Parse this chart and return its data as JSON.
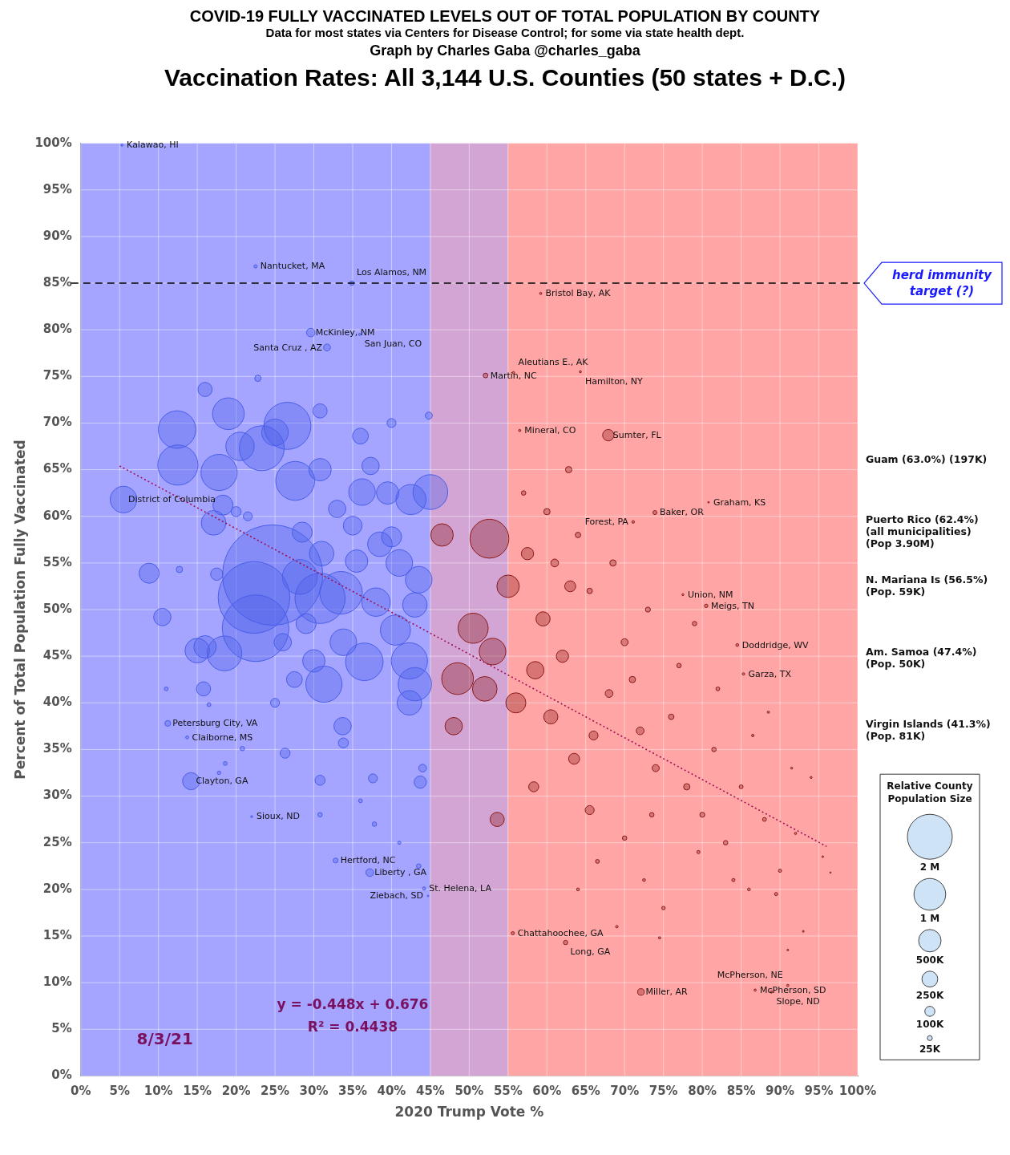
{
  "chart_data": {
    "type": "bubble",
    "title": "COVID-19 FULLY VACCINATED LEVELS OUT OF TOTAL POPULATION BY COUNTY",
    "subtitle": "Data for most states via Centers for Disease Control; for some via state health dept.",
    "xlabel": "2020 Trump Vote %",
    "ylabel": "Percent of Total Population Fully Vaccinated",
    "legend_title": "Relative County Population Size",
    "xlim": [
      0,
      100
    ],
    "ylim": [
      0,
      100
    ],
    "xticks": [
      {
        "value": 0,
        "label": "0%"
      },
      {
        "value": 5,
        "label": "5%"
      },
      {
        "value": 10,
        "label": "10%"
      },
      {
        "value": 15,
        "label": "15%"
      },
      {
        "value": 20,
        "label": "20%"
      },
      {
        "value": 25,
        "label": "25%"
      },
      {
        "value": 30,
        "label": "30%"
      },
      {
        "value": 35,
        "label": "35%"
      },
      {
        "value": 40,
        "label": "40%"
      },
      {
        "value": 45,
        "label": "45%"
      },
      {
        "value": 50,
        "label": "50%"
      },
      {
        "value": 55,
        "label": "55%"
      },
      {
        "value": 60,
        "label": "60%"
      },
      {
        "value": 65,
        "label": "65%"
      },
      {
        "value": 70,
        "label": "70%"
      },
      {
        "value": 75,
        "label": "75%"
      },
      {
        "value": 80,
        "label": "80%"
      },
      {
        "value": 85,
        "label": "85%"
      },
      {
        "value": 90,
        "label": "90%"
      },
      {
        "value": 95,
        "label": "95%"
      },
      {
        "value": 100,
        "label": "100%"
      }
    ],
    "yticks": [
      {
        "value": 0,
        "label": "0%"
      },
      {
        "value": 5,
        "label": "5%"
      },
      {
        "value": 10,
        "label": "10%"
      },
      {
        "value": 15,
        "label": "15%"
      },
      {
        "value": 20,
        "label": "20%"
      },
      {
        "value": 25,
        "label": "25%"
      },
      {
        "value": 30,
        "label": "30%"
      },
      {
        "value": 35,
        "label": "35%"
      },
      {
        "value": 40,
        "label": "40%"
      },
      {
        "value": 45,
        "label": "45%"
      },
      {
        "value": 50,
        "label": "50%"
      },
      {
        "value": 55,
        "label": "55%"
      },
      {
        "value": 60,
        "label": "60%"
      },
      {
        "value": 65,
        "label": "65%"
      },
      {
        "value": 70,
        "label": "70%"
      },
      {
        "value": 75,
        "label": "75%"
      },
      {
        "value": 80,
        "label": "80%"
      },
      {
        "value": 85,
        "label": "85%"
      },
      {
        "value": 90,
        "label": "90%"
      },
      {
        "value": 95,
        "label": "95%"
      },
      {
        "value": 100,
        "label": "100%"
      }
    ],
    "grid": true,
    "size_legend": [
      {
        "value": 2000000,
        "label": "2 M"
      },
      {
        "value": 1000000,
        "label": "1 M"
      },
      {
        "value": 500000,
        "label": "500K"
      },
      {
        "value": 250000,
        "label": "250K"
      },
      {
        "value": 100000,
        "label": "100K"
      },
      {
        "value": 25000,
        "label": "25K"
      }
    ],
    "bands": [
      {
        "axis": "x",
        "from": 0,
        "to": 45,
        "color": "#a5a5ff"
      },
      {
        "axis": "x",
        "from": 45,
        "to": 55,
        "color": "#d3a5d5"
      },
      {
        "axis": "x",
        "from": 55,
        "to": 100,
        "color": "#ffa5a5"
      }
    ],
    "ref_lines": [
      {
        "axis": "y",
        "value": 85,
        "label": "herd immunity target (?)",
        "color": "#000000",
        "line_style": "dashed"
      }
    ],
    "series": [
      {
        "color": "#4a5ee8",
        "x": [
          24.7,
          22.3,
          22.5,
          26.6,
          23.3,
          12.5,
          12.4,
          19.0,
          27.6,
          17.8,
          33.5,
          30.8,
          28.2,
          15.0,
          18.5,
          16.0,
          10.5,
          8.8,
          5.5,
          15.8,
          17.5,
          17.1,
          18.3,
          16.0,
          30.8,
          25.0,
          20.5,
          30.8,
          37.3,
          36.2,
          39.5,
          42.5,
          45.0,
          38.5,
          41.0,
          35.5,
          31.3,
          36.5,
          42.3,
          43.0,
          42.3,
          30.0,
          33.8,
          26.0,
          27.5,
          25.0,
          26.3,
          33.7,
          33.8,
          37.6,
          30.8,
          43.7,
          44.0,
          40.5,
          38.0,
          43.0,
          43.5,
          40.0,
          35.0,
          33.0,
          31.0,
          28.5,
          29.0,
          36.0,
          40.0,
          44.8,
          22.8,
          21.5,
          20.0,
          12.7,
          11.0,
          16.5,
          17.8,
          18.6,
          20.8,
          30.8,
          37.8,
          36.0,
          41.0,
          43.5,
          5.3,
          22.5,
          34.9,
          29.6,
          35.9,
          31.7,
          11.2,
          13.7,
          14.2,
          22.0,
          32.8,
          37.2,
          44.2,
          44.7
        ],
        "values": [
          53.7,
          51.3,
          48.0,
          69.7,
          67.3,
          65.5,
          69.3,
          71.0,
          63.8,
          64.7,
          51.8,
          51.2,
          53.5,
          45.6,
          45.3,
          46.0,
          49.2,
          53.9,
          61.8,
          41.5,
          53.8,
          59.3,
          61.2,
          73.6,
          71.3,
          69.0,
          67.5,
          65.0,
          65.4,
          62.6,
          62.5,
          61.8,
          62.6,
          57.0,
          55.0,
          55.2,
          42.0,
          44.4,
          44.5,
          42.0,
          40.0,
          44.5,
          46.5,
          46.5,
          42.5,
          40.0,
          34.6,
          37.5,
          35.7,
          31.9,
          31.7,
          31.5,
          33.0,
          47.8,
          50.8,
          50.5,
          53.2,
          57.8,
          59.0,
          60.8,
          56.0,
          58.3,
          48.5,
          68.6,
          70.0,
          70.8,
          74.8,
          60.0,
          60.5,
          54.3,
          41.5,
          39.8,
          32.5,
          33.5,
          35.1,
          28.0,
          27.0,
          29.5,
          25.0,
          22.5,
          99.8,
          86.8,
          85.0,
          79.7,
          79.5,
          78.1,
          37.8,
          36.3,
          31.6,
          27.8,
          23.1,
          21.8,
          20.1,
          19.3
        ],
        "sizes": [
          10000000,
          5100000,
          4400000,
          2200000,
          2000000,
          1600000,
          1400000,
          1000000,
          1500000,
          1300000,
          1800000,
          2500000,
          1200000,
          600000,
          1200000,
          500000,
          300000,
          400000,
          700000,
          200000,
          150000,
          600000,
          400000,
          200000,
          200000,
          700000,
          800000,
          500000,
          300000,
          700000,
          500000,
          900000,
          1200000,
          600000,
          700000,
          500000,
          1300000,
          1400000,
          1300000,
          1100000,
          600000,
          500000,
          700000,
          300000,
          250000,
          80000,
          100000,
          300000,
          100000,
          80000,
          100000,
          150000,
          60000,
          900000,
          800000,
          600000,
          700000,
          400000,
          350000,
          300000,
          600000,
          400000,
          400000,
          250000,
          80000,
          50000,
          40000,
          80000,
          100000,
          40000,
          15000,
          15000,
          12000,
          15000,
          20000,
          20000,
          20000,
          15000,
          10000,
          20000,
          5000,
          11000,
          19000,
          72000,
          5000,
          48000,
          33000,
          9000,
          290000,
          4000,
          24000,
          60000,
          10000,
          2800
        ]
      },
      {
        "color": "#8b1a1a",
        "x": [
          46.5,
          52.6,
          50.5,
          53.0,
          55.0,
          52.0,
          48.5,
          48.0,
          53.6,
          56.0,
          58.5,
          60.5,
          57.5,
          59.5,
          62.0,
          63.0,
          62.8,
          58.3,
          63.5,
          65.5,
          66.0,
          68.0,
          70.0,
          72.0,
          74.0,
          76.0,
          78.0,
          80.0,
          81.5,
          83.0,
          85.0,
          88.0,
          90.0,
          75.0,
          84.0,
          86.0,
          89.5,
          92.0,
          94.0,
          95.5,
          93.0,
          91.0,
          66.5,
          70.0,
          72.5,
          64.0,
          69.0,
          74.5,
          79.0,
          82.0,
          77.0,
          73.0,
          68.5,
          64.0,
          60.0,
          57.0,
          61.0,
          65.5,
          71.0,
          73.5,
          79.5,
          86.5,
          88.5,
          91.5,
          96.5,
          59.2,
          52.1,
          55.7,
          64.3,
          56.5,
          67.9,
          80.8,
          73.9,
          71.1,
          77.5,
          80.5,
          84.5,
          85.3,
          55.6,
          62.4,
          86.8,
          72.1,
          88.9,
          91.0
        ],
        "values": [
          58.0,
          57.6,
          48.0,
          45.5,
          52.5,
          41.5,
          42.6,
          37.5,
          27.5,
          40.0,
          43.5,
          38.5,
          56.0,
          49.0,
          45.0,
          52.5,
          65.0,
          31.0,
          34.0,
          28.5,
          36.5,
          41.0,
          46.5,
          37.0,
          33.0,
          38.5,
          31.0,
          28.0,
          35.0,
          25.0,
          31.0,
          27.5,
          22.0,
          18.0,
          21.0,
          20.0,
          19.5,
          26.0,
          32.0,
          23.5,
          15.5,
          13.5,
          23.0,
          25.5,
          21.0,
          20.0,
          16.0,
          14.8,
          48.5,
          41.5,
          44.0,
          50.0,
          55.0,
          58.0,
          60.5,
          62.5,
          55.0,
          52.0,
          42.5,
          28.0,
          24.0,
          36.5,
          39.0,
          33.0,
          21.8,
          83.9,
          75.1,
          75.4,
          75.5,
          69.2,
          68.7,
          61.5,
          60.4,
          59.4,
          51.6,
          50.4,
          46.2,
          43.1,
          15.3,
          14.3,
          9.2,
          9.0,
          9.0,
          9.7
        ],
        "sizes": [
          500000,
          1500000,
          900000,
          700000,
          500000,
          600000,
          1000000,
          300000,
          200000,
          400000,
          300000,
          200000,
          150000,
          200000,
          150000,
          120000,
          40000,
          100000,
          120000,
          80000,
          80000,
          60000,
          50000,
          60000,
          50000,
          30000,
          40000,
          25000,
          20000,
          20000,
          15000,
          15000,
          10000,
          12000,
          10000,
          8000,
          10000,
          5000,
          4000,
          3000,
          3000,
          3000,
          15000,
          20000,
          8000,
          8000,
          6000,
          5000,
          20000,
          15000,
          20000,
          25000,
          40000,
          30000,
          40000,
          20000,
          60000,
          30000,
          40000,
          20000,
          10000,
          6000,
          5000,
          4000,
          2000,
          5000,
          22000,
          5500,
          4400,
          5000,
          130000,
          2500,
          16000,
          7000,
          4000,
          12000,
          8000,
          6000,
          10000,
          19000,
          5000,
          43000,
          5000,
          5000
        ]
      },
      {
        "type": "line",
        "color": "#a01050",
        "line_style": "dotted",
        "x": [
          5,
          96
        ],
        "values": [
          65.4,
          24.6
        ]
      }
    ],
    "annotations": [
      "Graph by Charles Gaba @charles_gaba",
      "Vaccination Rates: All 3,144 U.S. Counties (50 states + D.C.)",
      "y = -0.448x + 0.676",
      "R² = 0.4438",
      "8/3/21",
      "Guam (63.0%) (197K)",
      "Puerto Rico (62.4%)\n(all municipalities)\n(Pop 3.90M)",
      "N. Mariana Is (56.5%)\n(Pop. 59K)",
      "Am. Samoa (47.4%)\n(Pop. 50K)",
      "Virgin Islands (41.3%)\n(Pop. 81K)",
      {
        "text": "Kalawao, HI",
        "x": 5.3,
        "y": 99.8
      },
      {
        "text": "Nantucket, MA",
        "x": 22.5,
        "y": 86.8
      },
      {
        "text": "Los Alamos, NM",
        "x": 34.9,
        "y": 85.0
      },
      {
        "text": "Bristol Bay, AK",
        "x": 59.2,
        "y": 83.9
      },
      {
        "text": "McKinley, NM",
        "x": 29.6,
        "y": 79.7
      },
      {
        "text": "San Juan, CO",
        "x": 35.9,
        "y": 79.5
      },
      {
        "text": "Santa Cruz , AZ",
        "x": 31.7,
        "y": 78.1
      },
      {
        "text": "Martin, NC",
        "x": 52.1,
        "y": 75.1
      },
      {
        "text": "Aleutians E., AK",
        "x": 55.7,
        "y": 75.4
      },
      {
        "text": "Hamilton, NY",
        "x": 64.3,
        "y": 75.5
      },
      {
        "text": "Mineral, CO",
        "x": 56.5,
        "y": 69.2
      },
      {
        "text": "Sumter, FL",
        "x": 67.9,
        "y": 68.7
      },
      {
        "text": "Graham, KS",
        "x": 80.8,
        "y": 61.5
      },
      {
        "text": "Baker, OR",
        "x": 73.9,
        "y": 60.4
      },
      {
        "text": "Forest, PA",
        "x": 71.1,
        "y": 59.4
      },
      {
        "text": "Union, NM",
        "x": 77.5,
        "y": 51.6
      },
      {
        "text": "Meigs, TN",
        "x": 80.5,
        "y": 50.4
      },
      {
        "text": "Doddridge, WV",
        "x": 84.5,
        "y": 46.2
      },
      {
        "text": "Garza, TX",
        "x": 85.3,
        "y": 43.1
      },
      {
        "text": "District of Columbia",
        "x": 5.5,
        "y": 61.8
      },
      {
        "text": "Petersburg City, VA",
        "x": 11.2,
        "y": 37.8
      },
      {
        "text": "Claiborne, MS",
        "x": 13.7,
        "y": 36.3
      },
      {
        "text": "Clayton, GA",
        "x": 14.2,
        "y": 31.6
      },
      {
        "text": "Sioux, ND",
        "x": 22.0,
        "y": 27.8
      },
      {
        "text": "Hertford, NC",
        "x": 32.8,
        "y": 23.1
      },
      {
        "text": "Liberty , GA",
        "x": 37.2,
        "y": 21.8
      },
      {
        "text": "St. Helena, LA",
        "x": 44.2,
        "y": 20.1
      },
      {
        "text": "Ziebach, SD",
        "x": 44.7,
        "y": 19.3
      },
      {
        "text": "Chattahoochee, GA",
        "x": 55.6,
        "y": 15.3
      },
      {
        "text": "Long, GA",
        "x": 62.4,
        "y": 14.3
      },
      {
        "text": "McPherson, SD",
        "x": 86.8,
        "y": 9.2
      },
      {
        "text": "Miller, AR",
        "x": 72.1,
        "y": 9.0
      },
      {
        "text": "Slope, ND",
        "x": 88.9,
        "y": 9.0
      },
      {
        "text": "McPherson, NE",
        "x": 91.0,
        "y": 9.7
      }
    ]
  }
}
